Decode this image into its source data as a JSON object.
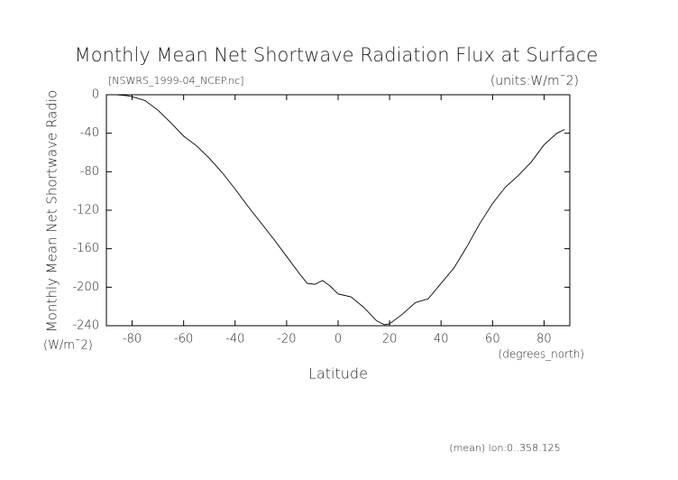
{
  "chart_data": {
    "type": "line",
    "title": "Monthly Mean Net Shortwave Radiation Flux at Surface",
    "file_label": "[NSWRS_1999-04_NCEP.nc]",
    "units_label": "(units:W/m¯2)",
    "ylabel": "Monthly Mean Net Shortwave Radio",
    "ylabel_units": "(W/m¯2)",
    "xlabel": "Latitude",
    "xlabel_units": "(degrees_north)",
    "footer": "(mean) lon:0..358.125",
    "x": [
      -86,
      -82,
      -80,
      -75,
      -70,
      -65,
      -60,
      -55,
      -50,
      -45,
      -40,
      -35,
      -30,
      -25,
      -20,
      -15,
      -12,
      -9,
      -6,
      -3,
      0,
      5,
      10,
      15,
      18,
      20,
      25,
      30,
      35,
      40,
      45,
      50,
      55,
      60,
      65,
      70,
      75,
      80,
      85,
      88
    ],
    "series": [
      {
        "name": "NSWRS",
        "color": "#000000",
        "values": [
          0,
          -1,
          -2,
          -6,
          -16,
          -29,
          -43,
          -53,
          -66,
          -81,
          -98,
          -116,
          -133,
          -150,
          -168,
          -186,
          -196,
          -197,
          -193,
          -199,
          -207,
          -210,
          -221,
          -235,
          -239,
          -238,
          -228,
          -216,
          -212,
          -196,
          -180,
          -158,
          -134,
          -113,
          -96,
          -84,
          -70,
          -52,
          -40,
          -36
        ]
      }
    ],
    "xlim": [
      -90,
      90
    ],
    "ylim": [
      -240,
      0
    ],
    "xticks": [
      -80,
      -60,
      -40,
      -20,
      0,
      20,
      40,
      60,
      80
    ],
    "yticks": [
      0,
      -40,
      -80,
      -120,
      -160,
      -200,
      -240
    ]
  }
}
